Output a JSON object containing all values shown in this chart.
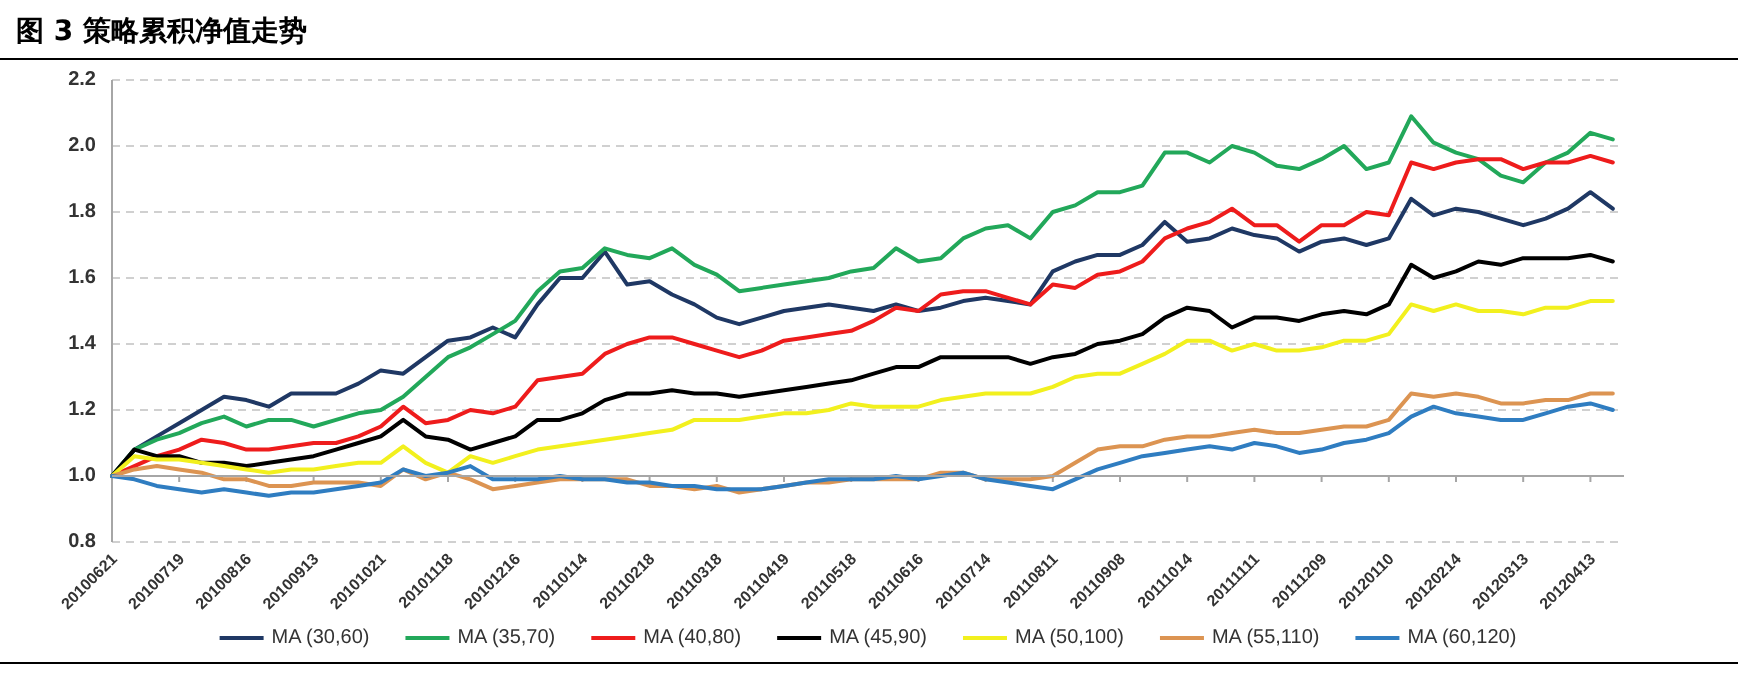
{
  "chart_data": {
    "type": "line",
    "title": "图 3 策略累积净值走势",
    "categories": [
      "20100621",
      null,
      null,
      "20100719",
      null,
      null,
      "20100816",
      null,
      null,
      "20100913",
      null,
      null,
      "20101021",
      null,
      null,
      "20101118",
      null,
      null,
      "20101216",
      null,
      null,
      "20110114",
      null,
      null,
      "20110218",
      null,
      null,
      "20110318",
      null,
      null,
      "20110419",
      null,
      null,
      "20110518",
      null,
      null,
      "20110616",
      null,
      null,
      "20110714",
      null,
      null,
      "20110811",
      null,
      null,
      "20110908",
      null,
      null,
      "20111014",
      null,
      null,
      "20111111",
      null,
      null,
      "20111209",
      null,
      null,
      "20120110",
      null,
      null,
      "20120214",
      null,
      null,
      "20120313",
      null,
      null,
      "20120413",
      null
    ],
    "ylim": [
      0.8,
      2.2
    ],
    "yticks": [
      0.8,
      {
        "value": 1.0,
        "label": "1.0"
      },
      1.2,
      1.4,
      1.6,
      1.8,
      {
        "value": 2.0,
        "label": "2.0"
      },
      2.2
    ],
    "grid": "y",
    "legend": "bottom",
    "marker": "none",
    "line_style": "solid",
    "ref_lines": [
      {
        "axis": "y",
        "value": 1.0,
        "color": "#a6a6a6"
      }
    ],
    "series": [
      {
        "name": "MA (30,60)",
        "color": "#1f3864",
        "values": [
          1.0,
          1.08,
          1.12,
          1.16,
          1.2,
          1.24,
          1.23,
          1.21,
          1.25,
          1.25,
          1.25,
          1.28,
          1.32,
          1.31,
          1.36,
          1.41,
          1.42,
          1.45,
          1.42,
          1.52,
          1.6,
          1.6,
          1.68,
          1.58,
          1.59,
          1.55,
          1.52,
          1.48,
          1.46,
          1.48,
          1.5,
          1.51,
          1.52,
          1.51,
          1.5,
          1.52,
          1.5,
          1.51,
          1.53,
          1.54,
          1.53,
          1.52,
          1.62,
          1.65,
          1.67,
          1.67,
          1.7,
          1.77,
          1.71,
          1.72,
          1.75,
          1.73,
          1.72,
          1.68,
          1.71,
          1.72,
          1.7,
          1.72,
          1.84,
          1.79,
          1.81,
          1.8,
          1.78,
          1.76,
          1.78,
          1.81,
          1.86,
          1.81
        ]
      },
      {
        "name": "MA (35,70)",
        "color": "#22a85a",
        "values": [
          1.0,
          1.08,
          1.11,
          1.13,
          1.16,
          1.18,
          1.15,
          1.17,
          1.17,
          1.15,
          1.17,
          1.19,
          1.2,
          1.24,
          1.3,
          1.36,
          1.39,
          1.43,
          1.47,
          1.56,
          1.62,
          1.63,
          1.69,
          1.67,
          1.66,
          1.69,
          1.64,
          1.61,
          1.56,
          1.57,
          1.58,
          1.59,
          1.6,
          1.62,
          1.63,
          1.69,
          1.65,
          1.66,
          1.72,
          1.75,
          1.76,
          1.72,
          1.8,
          1.82,
          1.86,
          1.86,
          1.88,
          1.98,
          1.98,
          1.95,
          2.0,
          1.98,
          1.94,
          1.93,
          1.96,
          2.0,
          1.93,
          1.95,
          2.09,
          2.01,
          1.98,
          1.96,
          1.91,
          1.89,
          1.95,
          1.98,
          2.04,
          2.02
        ]
      },
      {
        "name": "MA (40,80)",
        "color": "#ee1c1c",
        "values": [
          1.0,
          1.03,
          1.06,
          1.08,
          1.11,
          1.1,
          1.08,
          1.08,
          1.09,
          1.1,
          1.1,
          1.12,
          1.15,
          1.21,
          1.16,
          1.17,
          1.2,
          1.19,
          1.21,
          1.29,
          1.3,
          1.31,
          1.37,
          1.4,
          1.42,
          1.42,
          1.4,
          1.38,
          1.36,
          1.38,
          1.41,
          1.42,
          1.43,
          1.44,
          1.47,
          1.51,
          1.5,
          1.55,
          1.56,
          1.56,
          1.54,
          1.52,
          1.58,
          1.57,
          1.61,
          1.62,
          1.65,
          1.72,
          1.75,
          1.77,
          1.81,
          1.76,
          1.76,
          1.71,
          1.76,
          1.76,
          1.8,
          1.79,
          1.95,
          1.93,
          1.95,
          1.96,
          1.96,
          1.93,
          1.95,
          1.95,
          1.97,
          1.95
        ]
      },
      {
        "name": "MA (45,90)",
        "color": "#000000",
        "values": [
          1.0,
          1.08,
          1.06,
          1.06,
          1.04,
          1.04,
          1.03,
          1.04,
          1.05,
          1.06,
          1.08,
          1.1,
          1.12,
          1.17,
          1.12,
          1.11,
          1.08,
          1.1,
          1.12,
          1.17,
          1.17,
          1.19,
          1.23,
          1.25,
          1.25,
          1.26,
          1.25,
          1.25,
          1.24,
          1.25,
          1.26,
          1.27,
          1.28,
          1.29,
          1.31,
          1.33,
          1.33,
          1.36,
          1.36,
          1.36,
          1.36,
          1.34,
          1.36,
          1.37,
          1.4,
          1.41,
          1.43,
          1.48,
          1.51,
          1.5,
          1.45,
          1.48,
          1.48,
          1.47,
          1.49,
          1.5,
          1.49,
          1.52,
          1.64,
          1.6,
          1.62,
          1.65,
          1.64,
          1.66,
          1.66,
          1.66,
          1.67,
          1.65
        ]
      },
      {
        "name": "MA (50,100)",
        "color": "#f2f01e",
        "values": [
          1.0,
          1.06,
          1.05,
          1.05,
          1.04,
          1.03,
          1.02,
          1.01,
          1.02,
          1.02,
          1.03,
          1.04,
          1.04,
          1.09,
          1.04,
          1.01,
          1.06,
          1.04,
          1.06,
          1.08,
          1.09,
          1.1,
          1.11,
          1.12,
          1.13,
          1.14,
          1.17,
          1.17,
          1.17,
          1.18,
          1.19,
          1.19,
          1.2,
          1.22,
          1.21,
          1.21,
          1.21,
          1.23,
          1.24,
          1.25,
          1.25,
          1.25,
          1.27,
          1.3,
          1.31,
          1.31,
          1.34,
          1.37,
          1.41,
          1.41,
          1.38,
          1.4,
          1.38,
          1.38,
          1.39,
          1.41,
          1.41,
          1.43,
          1.52,
          1.5,
          1.52,
          1.5,
          1.5,
          1.49,
          1.51,
          1.51,
          1.53,
          1.53
        ]
      },
      {
        "name": "MA (55,110)",
        "color": "#dc9452",
        "values": [
          1.0,
          1.02,
          1.03,
          1.02,
          1.01,
          0.99,
          0.99,
          0.97,
          0.97,
          0.98,
          0.98,
          0.98,
          0.97,
          1.02,
          0.99,
          1.01,
          0.99,
          0.96,
          0.97,
          0.98,
          0.99,
          0.99,
          0.99,
          0.99,
          0.97,
          0.97,
          0.96,
          0.97,
          0.95,
          0.96,
          0.97,
          0.98,
          0.98,
          0.99,
          0.99,
          0.99,
          0.99,
          1.01,
          1.01,
          0.99,
          0.99,
          0.99,
          1.0,
          1.04,
          1.08,
          1.09,
          1.09,
          1.11,
          1.12,
          1.12,
          1.13,
          1.14,
          1.13,
          1.13,
          1.14,
          1.15,
          1.15,
          1.17,
          1.25,
          1.24,
          1.25,
          1.24,
          1.22,
          1.22,
          1.23,
          1.23,
          1.25,
          1.25
        ]
      },
      {
        "name": "MA (60,120)",
        "color": "#2f7dc1",
        "values": [
          1.0,
          0.99,
          0.97,
          0.96,
          0.95,
          0.96,
          0.95,
          0.94,
          0.95,
          0.95,
          0.96,
          0.97,
          0.98,
          1.02,
          1.0,
          1.01,
          1.03,
          0.99,
          0.99,
          0.99,
          1.0,
          0.99,
          0.99,
          0.98,
          0.98,
          0.97,
          0.97,
          0.96,
          0.96,
          0.96,
          0.97,
          0.98,
          0.99,
          0.99,
          0.99,
          1.0,
          0.99,
          1.0,
          1.01,
          0.99,
          0.98,
          0.97,
          0.96,
          0.99,
          1.02,
          1.04,
          1.06,
          1.07,
          1.08,
          1.09,
          1.08,
          1.1,
          1.09,
          1.07,
          1.08,
          1.1,
          1.11,
          1.13,
          1.18,
          1.21,
          1.19,
          1.18,
          1.17,
          1.17,
          1.19,
          1.21,
          1.22,
          1.2
        ]
      }
    ]
  }
}
